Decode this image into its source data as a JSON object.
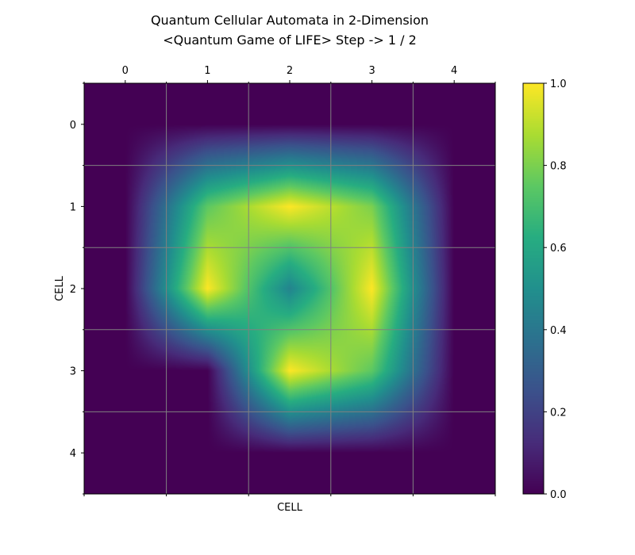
{
  "chart_data": {
    "type": "heatmap",
    "title": "Quantum Cellular Automata in 2-Dimension",
    "subtitle": "<Quantum Game of LIFE> Step -> 1 / 2",
    "xlabel": "CELL",
    "ylabel": "CELL",
    "x_ticks": [
      "0",
      "1",
      "2",
      "3",
      "4"
    ],
    "y_ticks": [
      "0",
      "1",
      "2",
      "3",
      "4"
    ],
    "grid": true,
    "interpolation": "bilinear",
    "colormap": "viridis",
    "vmin": 0.0,
    "vmax": 1.0,
    "colorbar_ticks": [
      "0.0",
      "0.2",
      "0.4",
      "0.6",
      "0.8",
      "1.0"
    ],
    "values": [
      [
        0.0,
        0.0,
        0.0,
        0.0,
        0.0
      ],
      [
        0.0,
        0.75,
        1.0,
        0.8,
        0.0
      ],
      [
        0.0,
        1.0,
        0.45,
        1.0,
        0.0
      ],
      [
        0.0,
        0.0,
        1.0,
        0.75,
        0.0
      ],
      [
        0.0,
        0.0,
        0.0,
        0.0,
        0.0
      ]
    ]
  }
}
